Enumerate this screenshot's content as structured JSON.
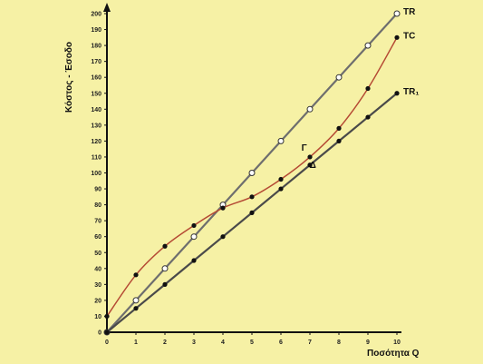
{
  "chart_data": {
    "type": "line",
    "xlabel": "Ποσότητα Q",
    "ylabel": "Κόστος - Έσοδο",
    "xlim": [
      0,
      10
    ],
    "ylim": [
      0,
      200
    ],
    "x_ticks": [
      0,
      1,
      2,
      3,
      4,
      5,
      6,
      7,
      8,
      9,
      10
    ],
    "y_ticks": [
      0,
      10,
      20,
      30,
      40,
      50,
      60,
      70,
      80,
      90,
      100,
      110,
      120,
      130,
      140,
      150,
      160,
      170,
      180,
      190,
      200
    ],
    "grid": false,
    "legend": "none",
    "series": [
      {
        "name": "TR",
        "color": "#6e6e6e",
        "marker": "open-circle",
        "x": [
          0,
          1,
          2,
          3,
          4,
          5,
          6,
          7,
          8,
          9,
          10
        ],
        "y": [
          0,
          20,
          40,
          60,
          80,
          100,
          120,
          140,
          160,
          180,
          200
        ]
      },
      {
        "name": "TC",
        "color": "#b54a34",
        "marker": "filled-dot",
        "x": [
          0,
          1,
          2,
          3,
          4,
          5,
          6,
          7,
          8,
          9,
          10
        ],
        "y": [
          10,
          36,
          54,
          67,
          78,
          85,
          96,
          110,
          128,
          153,
          185
        ]
      },
      {
        "name": "TR₁",
        "color": "#4a4a4a",
        "marker": "filled-dot",
        "x": [
          0,
          1,
          2,
          3,
          4,
          5,
          6,
          7,
          8,
          9,
          10
        ],
        "y": [
          0,
          15,
          30,
          45,
          60,
          75,
          90,
          105,
          120,
          135,
          150
        ]
      }
    ],
    "annotations": [
      {
        "text": "Γ",
        "x": 6.8,
        "y": 114
      },
      {
        "text": "Δ",
        "x": 7.1,
        "y": 103
      }
    ]
  }
}
